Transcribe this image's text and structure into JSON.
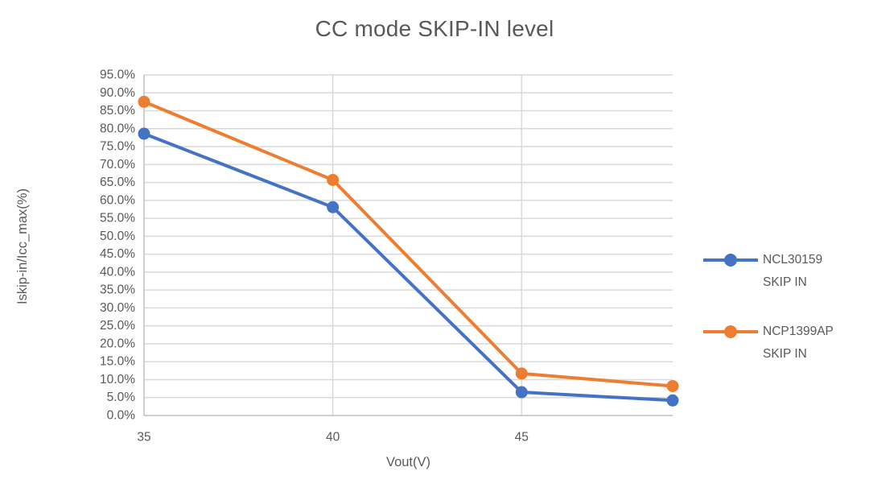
{
  "chart_data": {
    "type": "line",
    "title": "CC mode SKIP-IN level",
    "xlabel": "Vout(V)",
    "ylabel": "Iskip-in/Icc_max(%)",
    "x": [
      35,
      40,
      45,
      49
    ],
    "series": [
      {
        "name": "NCL30159 SKIP IN",
        "color": "#4472C4",
        "values": [
          78.6,
          58.1,
          6.5,
          4.2
        ]
      },
      {
        "name": "NCP1399AP SKIP IN",
        "color": "#ED7D31",
        "values": [
          87.5,
          65.7,
          11.7,
          8.2
        ]
      }
    ],
    "xlim": [
      35,
      49
    ],
    "ylim": [
      0,
      95
    ],
    "y_tick_step": 5,
    "y_tick_labels": [
      "0.0%",
      "5.0%",
      "10.0%",
      "15.0%",
      "20.0%",
      "25.0%",
      "30.0%",
      "35.0%",
      "40.0%",
      "45.0%",
      "50.0%",
      "55.0%",
      "60.0%",
      "65.0%",
      "70.0%",
      "75.0%",
      "80.0%",
      "85.0%",
      "90.0%",
      "95.0%"
    ],
    "x_tick_values": [
      35,
      40,
      45
    ],
    "x_tick_labels": [
      "35",
      "40",
      "45"
    ],
    "grid": true,
    "legend_position": "right",
    "legend": [
      {
        "line1": "NCL30159",
        "line2": "SKIP IN",
        "color": "#4472C4"
      },
      {
        "line1": "NCP1399AP",
        "line2": "SKIP IN",
        "color": "#ED7D31"
      }
    ]
  },
  "colors": {
    "text": "#595959",
    "gridline": "#D9D9D9",
    "axis_line": "#BFBFBF",
    "background": "#FFFFFF",
    "series_blue": "#4472C4",
    "series_orange": "#ED7D31"
  }
}
